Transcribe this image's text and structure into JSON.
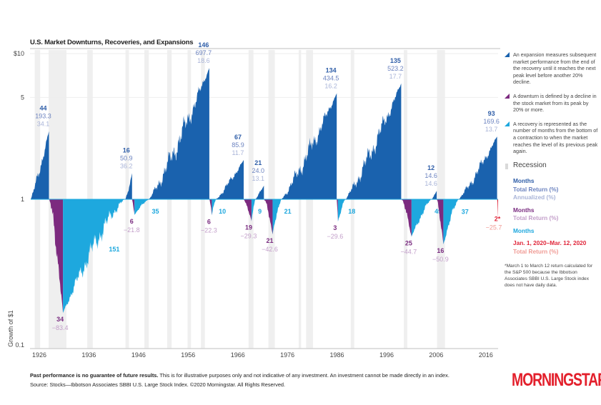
{
  "title": "U.S. Market Downturns, Recoveries, and Expansions",
  "colors": {
    "expansion": "#1a62ae",
    "downturn": "#7c2a7f",
    "recovery": "#1ea8de",
    "current": "#e0263a",
    "recession": "#efefef",
    "exp_months": "#2f5ea8",
    "exp_total": "#6d84c0",
    "exp_annual": "#a9b4d8",
    "down_months": "#7a2c80",
    "down_total": "#c39fca",
    "rec_months": "#1ea8de",
    "cur_months": "#e0263a",
    "cur_total": "#f09b95"
  },
  "legend": {
    "expansion": "An expansion measures subsequent market performance from the end of the recovery until it reaches the next peak level before another 20% decline.",
    "downturn": "A downturn is defined by a decline in the stock market from its peak by 20% or more.",
    "recovery": "A recovery is represented as the number of months from the bottom of a contraction to when the market reaches the level of its previous peak again.",
    "recession": "Recession",
    "key_exp_months": "Months",
    "key_exp_total": "Total Return (%)",
    "key_exp_annual": "Annualized (%)",
    "key_down_months": "Months",
    "key_down_total": "Total Return (%)",
    "key_rec_months": "Months",
    "key_cur_period": "Jan. 1, 2020–Mar. 12, 2020",
    "key_cur_total": "Total Return (%)",
    "note": "*March 1 to March 12 return calculated for the S&P 500 because the Ibbotson Associates SBBI U.S. Large Stock index does not have daily data."
  },
  "footer": {
    "bold": "Past performance is no guarantee of future results.",
    "text": " This is for illustrative purposes only and not indicative of any investment. An investment cannot be made directly in an index.",
    "source": "Source: Stocks—Ibbotson Associates SBBI U.S. Large Stock Index. ©2020 Morningstar. All Rights Reserved."
  },
  "logo": "MORNINGSTAR",
  "chart_data": {
    "type": "area",
    "title": "U.S. Market Downturns, Recoveries, and Expansions",
    "ylabel": "Growth of $1",
    "yscale": "log",
    "ylim": [
      0.1,
      10
    ],
    "yticks": [
      {
        "v": 10,
        "label": "$10"
      },
      {
        "v": 5,
        "label": "5"
      },
      {
        "v": 1,
        "label": "1"
      },
      {
        "v": 0.1,
        "label": "0.1"
      }
    ],
    "xlim": [
      1926,
      2020.2
    ],
    "xticks": [
      "1926",
      "1936",
      "1946",
      "1956",
      "1966",
      "1976",
      "1986",
      "1996",
      "2006",
      "2016"
    ],
    "grid": "horizontal",
    "phases": [
      {
        "type": "expansion",
        "start": 1926.0,
        "end": 1929.67,
        "months": "44",
        "total_return": "193.3",
        "annualized": "34.1",
        "end_value": 2.933
      },
      {
        "type": "downturn",
        "start": 1929.67,
        "end": 1932.5,
        "months": "34",
        "total_return": "−83.4",
        "end_value": 0.166
      },
      {
        "type": "recovery",
        "start": 1932.5,
        "end": 1945.08,
        "months": "151",
        "end_value": 1
      },
      {
        "type": "expansion",
        "start": 1945.08,
        "end": 1946.42,
        "months": "16",
        "total_return": "50.9",
        "annualized": "36.2",
        "end_value": 1.509
      },
      {
        "type": "downturn",
        "start": 1946.42,
        "end": 1946.92,
        "months": "6",
        "total_return": "−21.8",
        "end_value": 0.782
      },
      {
        "type": "recovery",
        "start": 1946.92,
        "end": 1949.83,
        "months": "35",
        "end_value": 1
      },
      {
        "type": "expansion",
        "start": 1949.83,
        "end": 1962.0,
        "months": "146",
        "total_return": "697.7",
        "annualized": "18.6",
        "end_value": 7.977
      },
      {
        "type": "downturn",
        "start": 1962.0,
        "end": 1962.5,
        "months": "6",
        "total_return": "−22.3",
        "end_value": 0.777
      },
      {
        "type": "recovery",
        "start": 1962.5,
        "end": 1963.33,
        "months": "10",
        "end_value": 1
      },
      {
        "type": "expansion",
        "start": 1963.33,
        "end": 1968.92,
        "months": "67",
        "total_return": "85.9",
        "annualized": "11.7",
        "end_value": 1.859
      },
      {
        "type": "downturn",
        "start": 1968.92,
        "end": 1970.5,
        "months": "19",
        "total_return": "−29.3",
        "end_value": 0.707
      },
      {
        "type": "recovery",
        "start": 1970.5,
        "end": 1971.25,
        "months": "9",
        "end_value": 1
      },
      {
        "type": "expansion",
        "start": 1971.25,
        "end": 1973.0,
        "months": "21",
        "total_return": "24.0",
        "annualized": "13.1",
        "end_value": 1.24
      },
      {
        "type": "downturn",
        "start": 1973.0,
        "end": 1974.75,
        "months": "21",
        "total_return": "−42.6",
        "end_value": 0.574
      },
      {
        "type": "recovery",
        "start": 1974.75,
        "end": 1976.5,
        "months": "21",
        "end_value": 1
      },
      {
        "type": "expansion",
        "start": 1976.5,
        "end": 1987.67,
        "months": "134",
        "total_return": "434.5",
        "annualized": "16.2",
        "end_value": 5.345
      },
      {
        "type": "downturn",
        "start": 1987.67,
        "end": 1987.92,
        "months": "3",
        "total_return": "−29.6",
        "end_value": 0.704
      },
      {
        "type": "recovery",
        "start": 1987.92,
        "end": 1989.42,
        "months": "18",
        "end_value": 1
      },
      {
        "type": "expansion",
        "start": 1989.42,
        "end": 2000.67,
        "months": "135",
        "total_return": "523.2",
        "annualized": "17.7",
        "end_value": 6.232
      },
      {
        "type": "downturn",
        "start": 2000.67,
        "end": 2002.75,
        "months": "25",
        "total_return": "−44.7",
        "end_value": 0.553
      },
      {
        "type": "recovery",
        "start": 2002.75,
        "end": 2006.83,
        "months": "49",
        "end_value": 1
      },
      {
        "type": "expansion",
        "start": 2006.83,
        "end": 2007.83,
        "months": "12",
        "total_return": "14.6",
        "annualized": "14.6",
        "end_value": 1.146
      },
      {
        "type": "downturn",
        "start": 2007.83,
        "end": 2009.17,
        "months": "16",
        "total_return": "−50.9",
        "end_value": 0.491
      },
      {
        "type": "recovery",
        "start": 2009.17,
        "end": 2012.25,
        "months": "37",
        "end_value": 1
      },
      {
        "type": "expansion",
        "start": 2012.25,
        "end": 2020.0,
        "months": "93",
        "total_return": "169.6",
        "annualized": "13.7",
        "end_value": 2.696
      },
      {
        "type": "current",
        "start": 2020.0,
        "end": 2020.2,
        "months": "2*",
        "total_return": "−25.7",
        "end_value": 0.743
      }
    ],
    "recessions": [
      [
        1926.8,
        1927.9
      ],
      [
        1929.6,
        1933.2
      ],
      [
        1937.4,
        1938.5
      ],
      [
        1945.1,
        1945.8
      ],
      [
        1948.9,
        1949.8
      ],
      [
        1953.5,
        1954.4
      ],
      [
        1957.6,
        1958.3
      ],
      [
        1960.3,
        1961.1
      ],
      [
        1969.9,
        1970.9
      ],
      [
        1973.9,
        1975.2
      ],
      [
        1980.0,
        1980.5
      ],
      [
        1981.5,
        1982.9
      ],
      [
        1990.5,
        1991.2
      ],
      [
        2001.2,
        2001.9
      ],
      [
        2007.9,
        2009.5
      ]
    ]
  }
}
